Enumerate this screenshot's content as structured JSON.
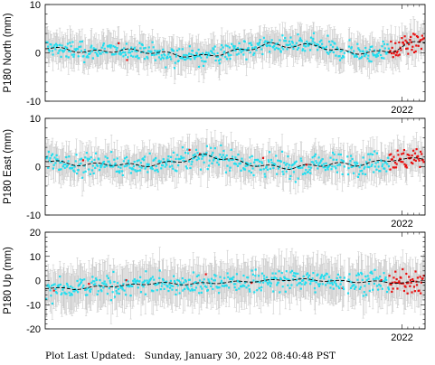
{
  "footer": {
    "label": "Plot Last Updated:",
    "timestamp": "Sunday, January 30, 2022 08:40:48 PST"
  },
  "colors": {
    "errorbar": "#c8c8c8",
    "point": "#22ddee",
    "recent_point": "#e81010",
    "trend": "#000000",
    "frame": "#000000"
  },
  "chart_data": [
    {
      "type": "scatter",
      "ylabel": "P180 North (mm)",
      "ylim": [
        -10,
        10
      ],
      "yticks": [
        -10,
        0,
        10
      ],
      "xtick": "2022",
      "xtick_value": 2022.0,
      "xlim": [
        2016.9,
        2022.33
      ],
      "error_mm": 2.8,
      "trend": [
        [
          2016.9,
          1.2
        ],
        [
          2017.2,
          0.6
        ],
        [
          2017.6,
          0.2
        ],
        [
          2018.0,
          0.6
        ],
        [
          2018.4,
          0.2
        ],
        [
          2018.8,
          -0.4
        ],
        [
          2019.1,
          -0.8
        ],
        [
          2019.4,
          -0.2
        ],
        [
          2019.8,
          0.8
        ],
        [
          2020.1,
          1.8
        ],
        [
          2020.4,
          1.4
        ],
        [
          2020.8,
          1.6
        ],
        [
          2021.0,
          0.6
        ],
        [
          2021.3,
          0.1
        ],
        [
          2021.6,
          0.0
        ],
        [
          2021.9,
          0.6
        ],
        [
          2022.1,
          1.8
        ],
        [
          2022.3,
          2.4
        ]
      ],
      "scatter_amp": 1.4,
      "recent_from": 2021.82
    },
    {
      "type": "scatter",
      "ylabel": "P180 East (mm)",
      "ylim": [
        -10,
        10
      ],
      "yticks": [
        -10,
        0,
        10
      ],
      "xtick": "2022",
      "xtick_value": 2022.0,
      "xlim": [
        2016.9,
        2022.33
      ],
      "error_mm": 3.0,
      "trend": [
        [
          2016.9,
          1.4
        ],
        [
          2017.2,
          0.6
        ],
        [
          2017.6,
          0.4
        ],
        [
          2017.9,
          0.6
        ],
        [
          2018.2,
          0.2
        ],
        [
          2018.6,
          0.6
        ],
        [
          2018.9,
          1.4
        ],
        [
          2019.2,
          2.4
        ],
        [
          2019.5,
          1.6
        ],
        [
          2019.8,
          0.6
        ],
        [
          2020.1,
          0.0
        ],
        [
          2020.4,
          -0.2
        ],
        [
          2020.7,
          0.2
        ],
        [
          2021.0,
          0.6
        ],
        [
          2021.3,
          0.4
        ],
        [
          2021.6,
          0.8
        ],
        [
          2021.9,
          1.6
        ],
        [
          2022.1,
          1.4
        ],
        [
          2022.3,
          1.8
        ]
      ],
      "scatter_amp": 1.6,
      "recent_from": 2021.82
    },
    {
      "type": "scatter",
      "ylabel": "P180 Up (mm)",
      "ylim": [
        -20,
        20
      ],
      "yticks": [
        -20,
        -10,
        0,
        10,
        20
      ],
      "xtick": "2022",
      "xtick_value": 2022.0,
      "xlim": [
        2016.9,
        2022.33
      ],
      "error_mm": 7.5,
      "trend": [
        [
          2016.9,
          -3.0
        ],
        [
          2017.3,
          -3.5
        ],
        [
          2017.7,
          -2.5
        ],
        [
          2018.1,
          -2.0
        ],
        [
          2018.5,
          -1.0
        ],
        [
          2018.9,
          -1.5
        ],
        [
          2019.3,
          -1.0
        ],
        [
          2019.7,
          -0.5
        ],
        [
          2020.1,
          0.0
        ],
        [
          2020.5,
          0.5
        ],
        [
          2020.9,
          0.0
        ],
        [
          2021.3,
          -0.5
        ],
        [
          2021.7,
          -0.5
        ],
        [
          2022.0,
          -1.0
        ],
        [
          2022.3,
          -0.5
        ]
      ],
      "scatter_amp": 3.2,
      "recent_from": 2021.82
    }
  ]
}
